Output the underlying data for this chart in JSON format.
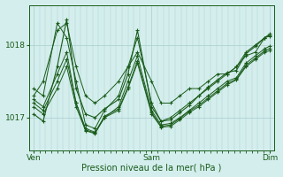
{
  "bg_color": "#d4eeed",
  "grid_color": "#a8cece",
  "line_color": "#1a5c1a",
  "marker_color": "#1a5c1a",
  "xlabel": "Pression niveau de la mer( hPa )",
  "yticks": [
    1017,
    1018
  ],
  "ylim": [
    1016.55,
    1018.55
  ],
  "xtick_labels": [
    "Ven",
    "Sam",
    "Dim"
  ],
  "xtick_positions": [
    0,
    0.5,
    1.0
  ],
  "xlim": [
    -0.02,
    1.02
  ],
  "figsize": [
    3.2,
    2.0
  ],
  "dpi": 100,
  "series": [
    {
      "x": [
        0.0,
        0.04,
        0.1,
        0.14,
        0.18,
        0.22,
        0.26,
        0.3,
        0.36,
        0.4,
        0.44,
        0.5,
        0.54,
        0.58,
        0.62,
        0.66,
        0.7,
        0.74,
        0.78,
        0.82,
        0.86,
        0.9,
        0.94,
        0.98,
        1.0
      ],
      "y": [
        1017.3,
        1017.5,
        1018.2,
        1018.3,
        1017.7,
        1017.3,
        1017.2,
        1017.3,
        1017.5,
        1017.7,
        1017.9,
        1017.5,
        1017.2,
        1017.2,
        1017.3,
        1017.4,
        1017.4,
        1017.5,
        1017.6,
        1017.6,
        1017.7,
        1017.85,
        1017.9,
        1018.1,
        1018.15
      ]
    },
    {
      "x": [
        0.0,
        0.04,
        0.1,
        0.14,
        0.18,
        0.22,
        0.26,
        0.3,
        0.36,
        0.4,
        0.44,
        0.5,
        0.54,
        0.58,
        0.62,
        0.66,
        0.7,
        0.74,
        0.78,
        0.82,
        0.86,
        0.9,
        0.94,
        0.98,
        1.0
      ],
      "y": [
        1017.4,
        1017.3,
        1018.3,
        1018.1,
        1017.5,
        1016.9,
        1016.85,
        1017.1,
        1017.3,
        1017.7,
        1018.1,
        1017.2,
        1016.95,
        1017.0,
        1017.1,
        1017.2,
        1017.3,
        1017.4,
        1017.5,
        1017.6,
        1017.7,
        1017.9,
        1018.0,
        1018.1,
        1018.12
      ]
    },
    {
      "x": [
        0.0,
        0.04,
        0.1,
        0.14,
        0.18,
        0.22,
        0.26,
        0.3,
        0.36,
        0.4,
        0.44,
        0.5,
        0.54,
        0.58,
        0.62,
        0.66,
        0.7,
        0.74,
        0.78,
        0.82,
        0.86,
        0.9,
        0.94,
        0.98,
        1.0
      ],
      "y": [
        1017.25,
        1017.15,
        1017.6,
        1017.9,
        1017.2,
        1016.85,
        1016.8,
        1017.0,
        1017.15,
        1017.5,
        1017.85,
        1017.1,
        1016.9,
        1016.92,
        1017.0,
        1017.1,
        1017.2,
        1017.3,
        1017.4,
        1017.5,
        1017.55,
        1017.75,
        1017.85,
        1017.95,
        1017.98
      ]
    },
    {
      "x": [
        0.0,
        0.04,
        0.1,
        0.14,
        0.18,
        0.22,
        0.26,
        0.3,
        0.36,
        0.4,
        0.44,
        0.5,
        0.54,
        0.58,
        0.62,
        0.66,
        0.7,
        0.74,
        0.78,
        0.82,
        0.86,
        0.9,
        0.94,
        0.98,
        1.0
      ],
      "y": [
        1017.15,
        1017.05,
        1017.4,
        1017.7,
        1017.15,
        1016.82,
        1016.78,
        1017.0,
        1017.1,
        1017.4,
        1017.75,
        1017.05,
        1016.87,
        1016.88,
        1016.97,
        1017.07,
        1017.15,
        1017.25,
        1017.35,
        1017.45,
        1017.52,
        1017.7,
        1017.8,
        1017.9,
        1017.92
      ]
    },
    {
      "x": [
        0.0,
        0.04,
        0.1,
        0.14,
        0.18,
        0.22,
        0.26,
        0.3,
        0.36,
        0.4,
        0.44,
        0.5,
        0.54,
        0.58,
        0.62,
        0.66,
        0.7,
        0.74,
        0.78,
        0.82,
        0.86,
        0.9,
        0.94,
        0.98,
        1.0
      ],
      "y": [
        1017.2,
        1017.1,
        1017.5,
        1017.8,
        1017.2,
        1016.83,
        1016.79,
        1017.02,
        1017.12,
        1017.42,
        1017.78,
        1017.07,
        1016.88,
        1016.9,
        1016.99,
        1017.09,
        1017.17,
        1017.27,
        1017.37,
        1017.47,
        1017.53,
        1017.72,
        1017.82,
        1017.92,
        1017.95
      ]
    },
    {
      "x": [
        0.0,
        0.04,
        0.1,
        0.14,
        0.18,
        0.22,
        0.26,
        0.3,
        0.36,
        0.4,
        0.44,
        0.5,
        0.54,
        0.58,
        0.62,
        0.66,
        0.7,
        0.74,
        0.78,
        0.82,
        0.86,
        0.9,
        0.94,
        0.98,
        1.0
      ],
      "y": [
        1017.05,
        1016.95,
        1017.7,
        1018.35,
        1017.4,
        1017.05,
        1017.0,
        1017.12,
        1017.25,
        1017.6,
        1018.2,
        1017.15,
        1016.95,
        1016.97,
        1017.07,
        1017.17,
        1017.3,
        1017.42,
        1017.52,
        1017.62,
        1017.65,
        1017.88,
        1017.98,
        1018.1,
        1018.13
      ]
    }
  ],
  "linewidths": [
    0.7,
    0.7,
    0.7,
    0.7,
    0.7,
    0.8
  ]
}
